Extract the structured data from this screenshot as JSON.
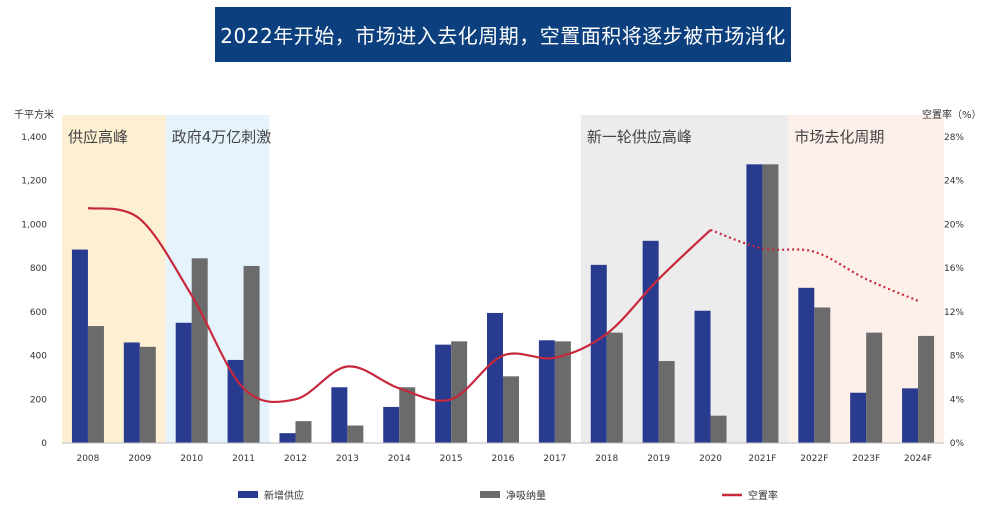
{
  "banner": {
    "title": "2022年开始，市场进入去化周期，空置面积将逐步被市场消化"
  },
  "chart_data": {
    "type": "bar",
    "left_axis_unit": "千平方米",
    "right_axis_unit": "空置率（%）",
    "categories": [
      "2008",
      "2009",
      "2010",
      "2011",
      "2012",
      "2013",
      "2014",
      "2015",
      "2016",
      "2017",
      "2018",
      "2019",
      "2020",
      "2021F",
      "2022F",
      "2023F",
      "2024F"
    ],
    "left_ticks": [
      "0",
      "200",
      "400",
      "600",
      "800",
      "1,000",
      "1,200",
      "1,400"
    ],
    "right_ticks": [
      "0%",
      "4%",
      "8%",
      "12%",
      "16%",
      "20%",
      "24%",
      "28%"
    ],
    "ylim_left": [
      0,
      1400
    ],
    "ylim_right": [
      0,
      28
    ],
    "series": [
      {
        "name": "新增供应",
        "kind": "bar",
        "color": "#283b8f",
        "values": [
          885,
          460,
          550,
          380,
          45,
          255,
          165,
          450,
          595,
          470,
          815,
          925,
          605,
          1275,
          710,
          230,
          250
        ]
      },
      {
        "name": "净吸纳量",
        "kind": "bar",
        "color": "#6b6b6b",
        "values": [
          535,
          440,
          845,
          810,
          100,
          80,
          255,
          465,
          305,
          465,
          505,
          375,
          125,
          1275,
          620,
          505,
          490
        ]
      },
      {
        "name": "空置率",
        "kind": "line",
        "color": "#c8283c",
        "axis": "right",
        "solid_count": 13,
        "values": [
          21.5,
          20.5,
          13.5,
          5.0,
          4.0,
          7.0,
          5.0,
          4.0,
          8.0,
          7.8,
          10.0,
          15.0,
          19.5,
          17.8,
          17.5,
          15.0,
          13.0
        ]
      }
    ],
    "phases": [
      {
        "label": "供应高峰",
        "from": 0,
        "to": 2,
        "color": "#fdf0d2"
      },
      {
        "label": "政府4万亿刺激",
        "from": 2,
        "to": 4,
        "color": "#e5f3fc"
      },
      {
        "label": "新一轮供应高峰",
        "from": 10,
        "to": 14,
        "color": "#ececec"
      },
      {
        "label": "市场去化周期",
        "from": 14,
        "to": 17,
        "color": "#fdf0ea"
      }
    ],
    "grid": false,
    "legend_position": "bottom"
  }
}
